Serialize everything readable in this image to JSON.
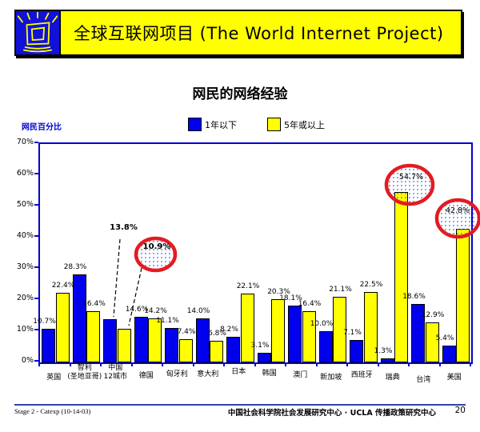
{
  "header": {
    "title": "全球互联网项目 (The World Internet Project)",
    "logo_icon": "shining-monitor-icon",
    "banner_color": "#FFFF00",
    "logo_color": "#1111D8"
  },
  "slide_title": "网民的网络经验",
  "chart_data": {
    "type": "bar",
    "title": "网民的网络经验",
    "ylabel": "网民百分比",
    "ylim": [
      0,
      70
    ],
    "ytick_labels": [
      "70%",
      "60%",
      "50%",
      "40%",
      "30%",
      "20%",
      "10%",
      "0%"
    ],
    "grid": false,
    "legend_position": "top",
    "categories": [
      "英国",
      "智利\n(圣地亚哥)",
      "中国\n12城市",
      "德国",
      "匈牙利",
      "意大利",
      "日本",
      "韩国",
      "澳门",
      "新加坡",
      "西班牙",
      "瑞典",
      "台湾",
      "美国"
    ],
    "series": [
      {
        "name": "1年以下",
        "color": "#0000EE",
        "values": [
          10.7,
          28.3,
          13.8,
          14.6,
          11.1,
          14.0,
          8.2,
          3.1,
          18.1,
          10.0,
          7.1,
          1.3,
          18.6,
          5.4
        ]
      },
      {
        "name": "5年或以上",
        "color": "#FFFF00",
        "values": [
          22.4,
          16.4,
          10.9,
          14.2,
          7.4,
          6.8,
          22.1,
          20.3,
          16.4,
          21.1,
          22.5,
          54.7,
          12.9,
          42.8
        ]
      }
    ],
    "annotations": {
      "circled_values": [
        "10.9%",
        "54.7%",
        "42.8%"
      ],
      "bold_callout_value": "13.8%",
      "circle_color": "#E31B23"
    }
  },
  "footer": {
    "left": "Stage 2 - Catexp (10-14-03)",
    "right": "中国社会科学院社会发展研究中心 · UCLA 传播政策研究中心",
    "page": "20"
  }
}
